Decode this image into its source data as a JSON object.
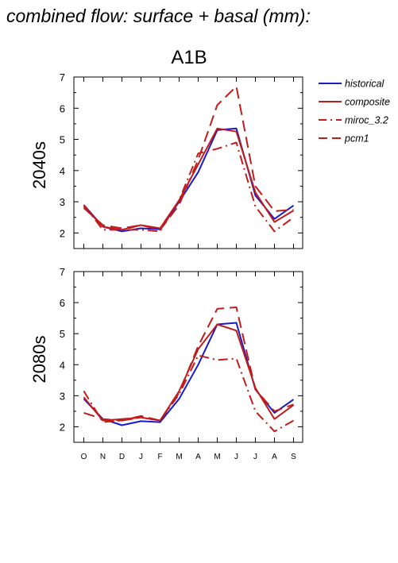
{
  "figure": {
    "title": "combined flow: surface + basal (mm):",
    "scenario": "A1B"
  },
  "colors": {
    "historical": "#1a1ac8",
    "model": "#c01c1c"
  },
  "chart_data": [
    {
      "type": "line",
      "panel_label": "2040s",
      "categories": [
        "O",
        "N",
        "D",
        "J",
        "F",
        "M",
        "A",
        "M",
        "J",
        "J",
        "A",
        "S"
      ],
      "ylim": [
        1.5,
        7
      ],
      "yticks": [
        2,
        3,
        4,
        5,
        6,
        7
      ],
      "series": [
        {
          "name": "historical",
          "style": "solid",
          "color": "#1a1ac8",
          "values": [
            2.9,
            2.2,
            2.05,
            2.15,
            2.12,
            3.0,
            3.95,
            5.3,
            5.35,
            3.2,
            2.45,
            2.88
          ]
        },
        {
          "name": "composite",
          "style": "solid",
          "color": "#c01c1c",
          "values": [
            2.85,
            2.2,
            2.1,
            2.25,
            2.15,
            3.05,
            4.2,
            5.35,
            5.25,
            3.3,
            2.35,
            2.72
          ]
        },
        {
          "name": "miroc_3.2",
          "style": "dashdot",
          "color": "#c01c1c",
          "values": [
            2.9,
            2.1,
            2.1,
            2.1,
            2.05,
            3.05,
            4.55,
            4.7,
            4.9,
            2.85,
            2.05,
            2.5
          ]
        },
        {
          "name": "pcm1",
          "style": "longdash",
          "color": "#c01c1c",
          "values": [
            2.8,
            2.25,
            2.15,
            2.25,
            2.1,
            2.9,
            4.35,
            6.1,
            6.7,
            3.5,
            2.7,
            2.75
          ]
        }
      ]
    },
    {
      "type": "line",
      "panel_label": "2080s",
      "categories": [
        "O",
        "N",
        "D",
        "J",
        "F",
        "M",
        "A",
        "M",
        "J",
        "J",
        "A",
        "S"
      ],
      "ylim": [
        1.5,
        7
      ],
      "yticks": [
        2,
        3,
        4,
        5,
        6,
        7
      ],
      "series": [
        {
          "name": "historical",
          "style": "solid",
          "color": "#1a1ac8",
          "values": [
            2.9,
            2.25,
            2.05,
            2.18,
            2.15,
            2.9,
            4.0,
            5.3,
            5.35,
            3.2,
            2.45,
            2.88
          ]
        },
        {
          "name": "composite",
          "style": "solid",
          "color": "#c01c1c",
          "values": [
            2.95,
            2.2,
            2.25,
            2.3,
            2.2,
            3.15,
            4.5,
            5.3,
            5.1,
            3.25,
            2.25,
            2.7
          ]
        },
        {
          "name": "miroc_3.2",
          "style": "dashdot",
          "color": "#c01c1c",
          "values": [
            3.15,
            2.15,
            2.2,
            2.3,
            2.2,
            3.05,
            4.3,
            4.15,
            4.2,
            2.5,
            1.85,
            2.2
          ]
        },
        {
          "name": "pcm1",
          "style": "longdash",
          "color": "#c01c1c",
          "values": [
            2.45,
            2.25,
            2.2,
            2.35,
            2.2,
            3.1,
            4.6,
            5.8,
            5.85,
            3.2,
            2.5,
            2.72
          ]
        }
      ]
    }
  ],
  "legend": [
    {
      "label": "historical",
      "style": "solid",
      "color": "#1a1ac8"
    },
    {
      "label": "composite",
      "style": "solid",
      "color": "#c01c1c"
    },
    {
      "label": "miroc_3.2",
      "style": "dashdot",
      "color": "#c01c1c"
    },
    {
      "label": "pcm1",
      "style": "longdash",
      "color": "#c01c1c"
    }
  ]
}
